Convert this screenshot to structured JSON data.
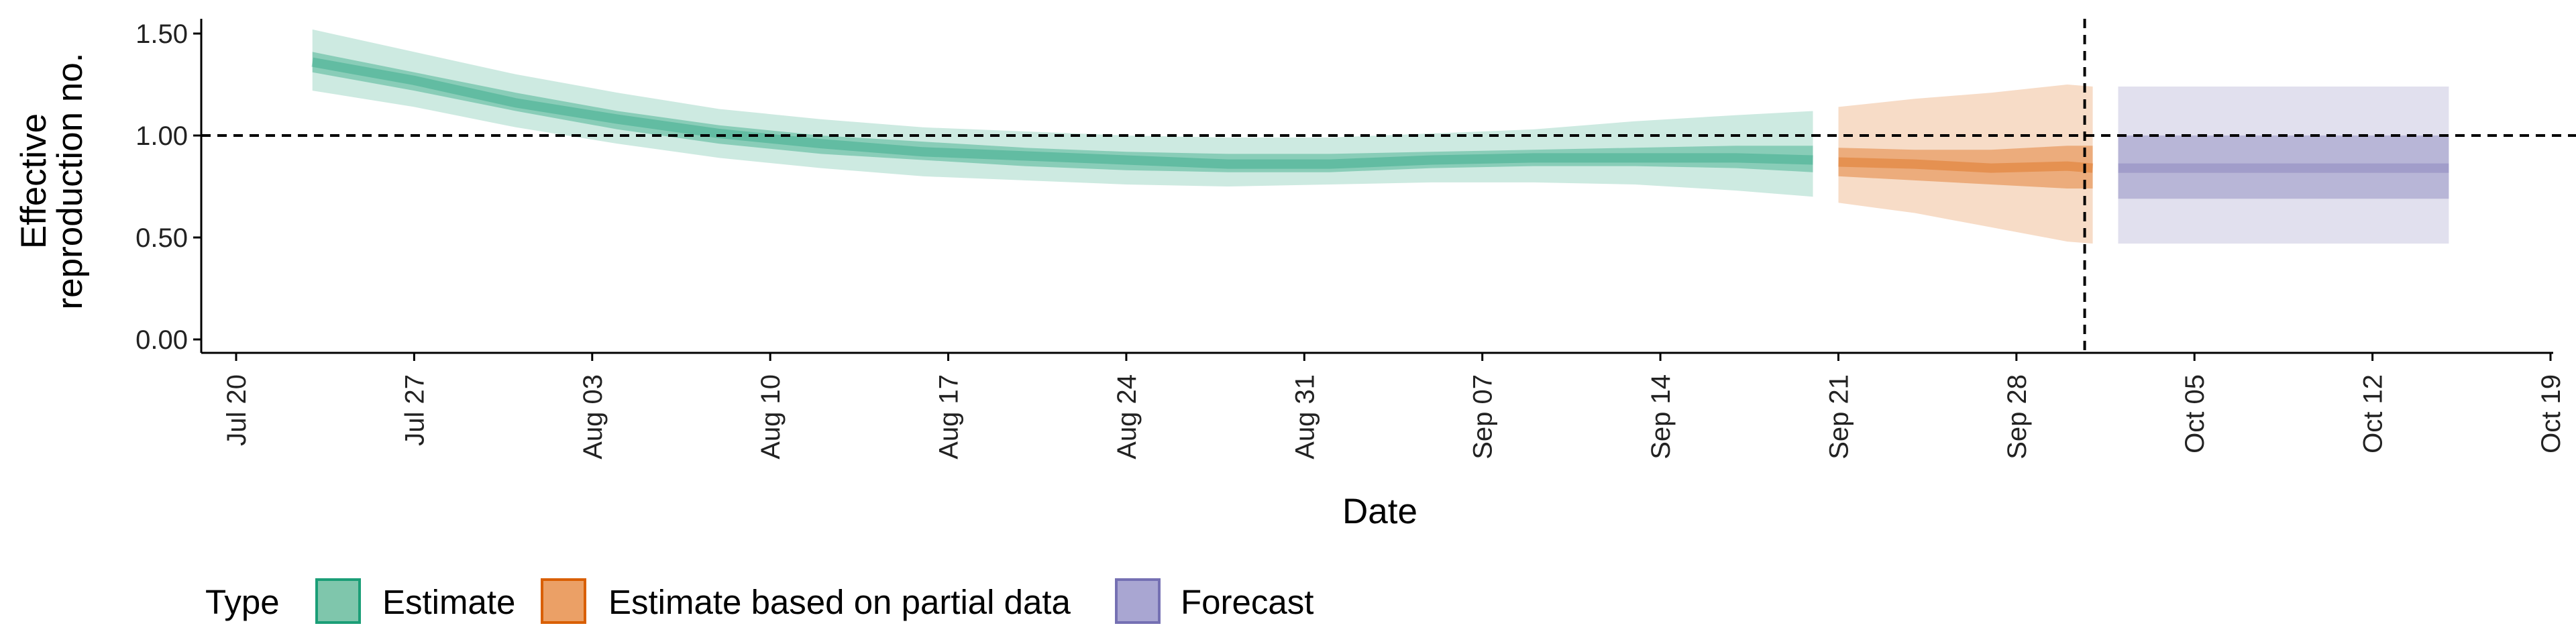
{
  "chart_data": {
    "type": "area",
    "xlabel": "Date",
    "ylabel_lines": [
      "Effective",
      "reproduction no."
    ],
    "ylim": [
      0,
      1.6
    ],
    "y_ticks": [
      {
        "value": 0.0,
        "label": "0.00"
      },
      {
        "value": 0.5,
        "label": "0.50"
      },
      {
        "value": 1.0,
        "label": "1.00"
      },
      {
        "value": 1.5,
        "label": "1.50"
      }
    ],
    "x_range": [
      "2020-07-17",
      "2020-10-19"
    ],
    "x_ticks": [
      {
        "date": "2020-07-20",
        "label": "Jul 20"
      },
      {
        "date": "2020-07-27",
        "label": "Jul 27"
      },
      {
        "date": "2020-08-03",
        "label": "Aug 03"
      },
      {
        "date": "2020-08-10",
        "label": "Aug 10"
      },
      {
        "date": "2020-08-17",
        "label": "Aug 17"
      },
      {
        "date": "2020-08-24",
        "label": "Aug 24"
      },
      {
        "date": "2020-08-31",
        "label": "Aug 31"
      },
      {
        "date": "2020-09-07",
        "label": "Sep 07"
      },
      {
        "date": "2020-09-14",
        "label": "Sep 14"
      },
      {
        "date": "2020-09-21",
        "label": "Sep 21"
      },
      {
        "date": "2020-09-28",
        "label": "Sep 28"
      },
      {
        "date": "2020-10-05",
        "label": "Oct 05"
      },
      {
        "date": "2020-10-12",
        "label": "Oct 12"
      },
      {
        "date": "2020-10-19",
        "label": "Oct 19"
      }
    ],
    "reference_lines": {
      "horizontal_y": 1.0,
      "vertical_date": "2020-10-01"
    },
    "legend": {
      "title": "Type",
      "position": "bottom",
      "items": [
        {
          "label": "Estimate",
          "fill": "#7FC6AC",
          "border": "#1B9E77"
        },
        {
          "label": "Estimate based on partial data",
          "fill": "#EBA066",
          "border": "#D95F02"
        },
        {
          "label": "Forecast",
          "fill": "#A9A6D2",
          "border": "#7570B3"
        }
      ]
    },
    "series": [
      {
        "name": "Estimate",
        "colors": {
          "outer": "#1B9E77",
          "inner": "#1B9E77",
          "median": "#1B9E77"
        },
        "step": false,
        "points": [
          {
            "date": "2020-07-23",
            "lo90": 1.22,
            "lo50": 1.31,
            "median": 1.36,
            "hi50": 1.41,
            "hi90": 1.52
          },
          {
            "date": "2020-07-27",
            "lo90": 1.14,
            "lo50": 1.22,
            "median": 1.27,
            "hi50": 1.31,
            "hi90": 1.41
          },
          {
            "date": "2020-07-31",
            "lo90": 1.04,
            "lo50": 1.12,
            "median": 1.16,
            "hi50": 1.21,
            "hi90": 1.3
          },
          {
            "date": "2020-08-04",
            "lo90": 0.96,
            "lo50": 1.03,
            "median": 1.08,
            "hi50": 1.12,
            "hi90": 1.21
          },
          {
            "date": "2020-08-08",
            "lo90": 0.89,
            "lo50": 0.96,
            "median": 1.01,
            "hi50": 1.05,
            "hi90": 1.13
          },
          {
            "date": "2020-08-12",
            "lo90": 0.84,
            "lo50": 0.91,
            "median": 0.96,
            "hi50": 1.0,
            "hi90": 1.08
          },
          {
            "date": "2020-08-16",
            "lo90": 0.8,
            "lo50": 0.88,
            "median": 0.92,
            "hi50": 0.97,
            "hi90": 1.04
          },
          {
            "date": "2020-08-20",
            "lo90": 0.78,
            "lo50": 0.85,
            "median": 0.9,
            "hi50": 0.94,
            "hi90": 1.02
          },
          {
            "date": "2020-08-24",
            "lo90": 0.76,
            "lo50": 0.83,
            "median": 0.88,
            "hi50": 0.92,
            "hi90": 1.0
          },
          {
            "date": "2020-08-28",
            "lo90": 0.75,
            "lo50": 0.82,
            "median": 0.86,
            "hi50": 0.91,
            "hi90": 0.99
          },
          {
            "date": "2020-09-01",
            "lo90": 0.76,
            "lo50": 0.82,
            "median": 0.86,
            "hi50": 0.91,
            "hi90": 0.99
          },
          {
            "date": "2020-09-05",
            "lo90": 0.77,
            "lo50": 0.84,
            "median": 0.88,
            "hi50": 0.92,
            "hi90": 1.01
          },
          {
            "date": "2020-09-09",
            "lo90": 0.77,
            "lo50": 0.85,
            "median": 0.89,
            "hi50": 0.93,
            "hi90": 1.03
          },
          {
            "date": "2020-09-13",
            "lo90": 0.76,
            "lo50": 0.85,
            "median": 0.89,
            "hi50": 0.94,
            "hi90": 1.07
          },
          {
            "date": "2020-09-17",
            "lo90": 0.73,
            "lo50": 0.84,
            "median": 0.89,
            "hi50": 0.95,
            "hi90": 1.1
          },
          {
            "date": "2020-09-20",
            "lo90": 0.7,
            "lo50": 0.82,
            "median": 0.88,
            "hi50": 0.95,
            "hi90": 1.12
          }
        ]
      },
      {
        "name": "Estimate based on partial data",
        "colors": {
          "outer": "#D95F02",
          "inner": "#D95F02",
          "median": "#D95F02"
        },
        "step": false,
        "points": [
          {
            "date": "2020-09-21",
            "lo90": 0.67,
            "lo50": 0.8,
            "median": 0.87,
            "hi50": 0.94,
            "hi90": 1.14
          },
          {
            "date": "2020-09-24",
            "lo90": 0.62,
            "lo50": 0.78,
            "median": 0.86,
            "hi50": 0.93,
            "hi90": 1.18
          },
          {
            "date": "2020-09-27",
            "lo90": 0.55,
            "lo50": 0.76,
            "median": 0.84,
            "hi50": 0.93,
            "hi90": 1.21
          },
          {
            "date": "2020-09-30",
            "lo90": 0.48,
            "lo50": 0.74,
            "median": 0.85,
            "hi50": 0.95,
            "hi90": 1.25
          },
          {
            "date": "2020-10-01",
            "lo90": 0.47,
            "lo50": 0.74,
            "median": 0.84,
            "hi50": 0.95,
            "hi90": 1.24
          }
        ]
      },
      {
        "name": "Forecast",
        "colors": {
          "outer": "#7570B3",
          "inner": "#7570B3",
          "median": "#7570B3"
        },
        "step": true,
        "points": [
          {
            "date": "2020-10-02",
            "lo90": 0.47,
            "lo50": 0.69,
            "median": 0.84,
            "hi50": 1.0,
            "hi90": 1.24
          },
          {
            "date": "2020-10-15",
            "lo90": 0.47,
            "lo50": 0.69,
            "median": 0.84,
            "hi50": 1.0,
            "hi90": 1.24
          }
        ]
      }
    ]
  }
}
